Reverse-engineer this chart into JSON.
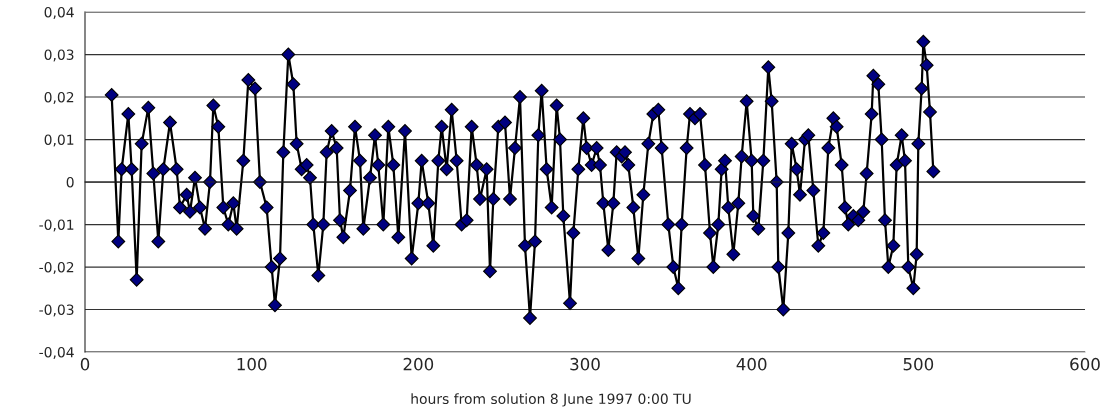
{
  "chart_data": {
    "type": "line",
    "xlabel": "hours from solution 8 June 1997 0:00 TU",
    "xlim": [
      0,
      600
    ],
    "xticks": [
      0,
      100,
      200,
      300,
      400,
      500,
      600
    ],
    "ylim": [
      -0.04,
      0.04
    ],
    "yticks": [
      {
        "value": -0.04,
        "label": "-0,04"
      },
      {
        "value": -0.03,
        "label": "-0,03"
      },
      {
        "value": -0.02,
        "label": "-0,02"
      },
      {
        "value": -0.01,
        "label": "-0,01"
      },
      {
        "value": 0,
        "label": "0"
      },
      {
        "value": 0.01,
        "label": "0,01"
      },
      {
        "value": 0.02,
        "label": "0,02"
      },
      {
        "value": 0.03,
        "label": "0,03"
      },
      {
        "value": 0.04,
        "label": "0,04"
      }
    ],
    "grid": "y",
    "marker": "diamond",
    "line_style": "solid",
    "series": [
      {
        "color": "#000080",
        "x": [
          16,
          20,
          22,
          26,
          28,
          31,
          34,
          38,
          41,
          44,
          47,
          51,
          55,
          57,
          61,
          63,
          66,
          69,
          72,
          75,
          77,
          80,
          83,
          86,
          89,
          91,
          95,
          98,
          102,
          105,
          109,
          112,
          114,
          117,
          119,
          122,
          125,
          127,
          130,
          133,
          135,
          137,
          140,
          143,
          145,
          148,
          151,
          153,
          155,
          159,
          162,
          165,
          167,
          171,
          174,
          176,
          179,
          182,
          185,
          188,
          192,
          196,
          200,
          202,
          206,
          209,
          212,
          214,
          217,
          220,
          223,
          226,
          229,
          232,
          235,
          237,
          241,
          243,
          245,
          248,
          252,
          255,
          258,
          261,
          264,
          267,
          270,
          272,
          274,
          277,
          280,
          283,
          285,
          287,
          291,
          293,
          296,
          299,
          301,
          304,
          307,
          309,
          311,
          314,
          317,
          319,
          322,
          324,
          326,
          329,
          332,
          335,
          338,
          341,
          344,
          346,
          350,
          353,
          356,
          358,
          361,
          363,
          366,
          369,
          372,
          375,
          377,
          380,
          382,
          384,
          386,
          389,
          392,
          394,
          397,
          400,
          401,
          404,
          407,
          410,
          412,
          415,
          416,
          419,
          422,
          424,
          427,
          429,
          432,
          434,
          437,
          440,
          443,
          446,
          449,
          451,
          454,
          456,
          458,
          461,
          464,
          467,
          469,
          472,
          473,
          476,
          478,
          480,
          482,
          485,
          487,
          490,
          492,
          494,
          497,
          499,
          500,
          502,
          503,
          505,
          507,
          509
        ],
        "values": [
          0.0205,
          -0.014,
          0.003,
          0.016,
          0.003,
          -0.023,
          0.009,
          0.0175,
          0.002,
          -0.014,
          0.003,
          0.014,
          0.003,
          -0.006,
          -0.003,
          -0.007,
          0.001,
          -0.006,
          -0.011,
          0.0,
          0.018,
          0.013,
          -0.006,
          -0.01,
          -0.005,
          -0.011,
          0.005,
          0.024,
          0.022,
          0.0,
          -0.006,
          -0.02,
          -0.029,
          -0.018,
          0.007,
          0.03,
          0.023,
          0.009,
          0.003,
          0.004,
          0.001,
          -0.01,
          -0.022,
          -0.01,
          0.007,
          0.012,
          0.008,
          -0.009,
          -0.013,
          -0.002,
          0.013,
          0.005,
          -0.011,
          0.001,
          0.011,
          0.004,
          -0.01,
          0.013,
          0.004,
          -0.013,
          0.012,
          -0.018,
          -0.005,
          0.005,
          -0.005,
          -0.015,
          0.005,
          0.013,
          0.003,
          0.017,
          0.005,
          -0.01,
          -0.009,
          0.013,
          0.004,
          -0.004,
          0.003,
          -0.021,
          -0.004,
          0.013,
          0.014,
          -0.004,
          0.008,
          0.02,
          -0.015,
          -0.032,
          -0.014,
          0.011,
          0.0215,
          0.003,
          -0.006,
          0.018,
          0.01,
          -0.008,
          -0.0285,
          -0.012,
          0.003,
          0.015,
          0.008,
          0.004,
          0.008,
          0.004,
          -0.005,
          -0.016,
          -0.005,
          0.007,
          0.006,
          0.007,
          0.004,
          -0.006,
          -0.018,
          -0.003,
          0.009,
          0.016,
          0.017,
          0.008,
          -0.01,
          -0.02,
          -0.025,
          -0.01,
          0.008,
          0.016,
          0.015,
          0.016,
          0.004,
          -0.012,
          -0.02,
          -0.01,
          0.003,
          0.005,
          -0.006,
          -0.017,
          -0.005,
          0.006,
          0.019,
          0.005,
          -0.008,
          -0.011,
          0.005,
          0.027,
          0.019,
          0.0,
          -0.02,
          -0.03,
          -0.012,
          0.009,
          0.003,
          -0.003,
          0.01,
          0.011,
          -0.002,
          -0.015,
          -0.012,
          0.008,
          0.015,
          0.013,
          0.004,
          -0.006,
          -0.01,
          -0.008,
          -0.009,
          -0.007,
          0.002,
          0.016,
          0.025,
          0.023,
          0.01,
          -0.009,
          -0.02,
          -0.015,
          0.004,
          0.011,
          0.005,
          -0.02,
          -0.025,
          -0.017,
          0.009,
          0.022,
          0.033,
          0.0275,
          0.0165,
          0.0025
        ]
      }
    ]
  }
}
